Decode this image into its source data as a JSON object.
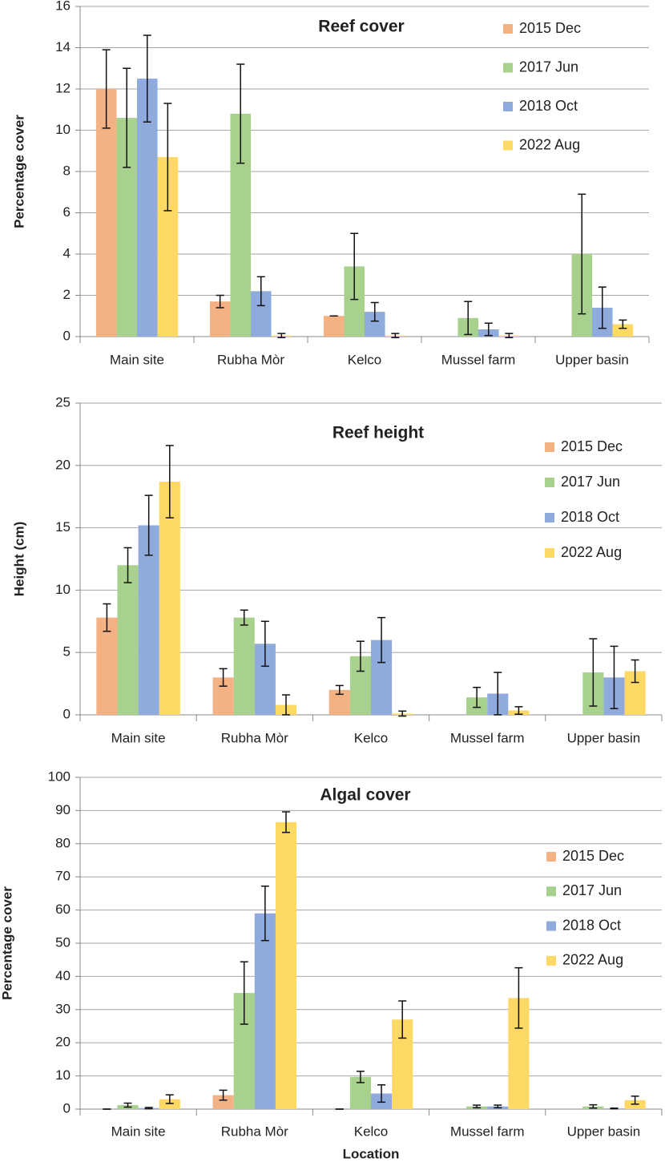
{
  "chart_data": [
    {
      "type": "bar",
      "title": "Reef cover",
      "y_label": "Percentage cover",
      "categories": [
        "Main site",
        "Rubha Mòr",
        "Kelco",
        "Mussel farm",
        "Upper basin"
      ],
      "series": [
        {
          "name": "2015 Dec",
          "color": "#f4b183",
          "values": [
            12.0,
            1.7,
            1.0,
            null,
            null
          ],
          "errors": [
            1.9,
            0.3,
            0,
            null,
            null
          ]
        },
        {
          "name": "2017 Jun",
          "color": "#a9d18e",
          "values": [
            10.6,
            10.8,
            3.4,
            0.9,
            4.0
          ],
          "errors": [
            2.4,
            2.4,
            1.6,
            0.8,
            2.9
          ]
        },
        {
          "name": "2018 Oct",
          "color": "#8faadc",
          "values": [
            12.5,
            2.2,
            1.2,
            0.35,
            1.4
          ],
          "errors": [
            2.1,
            0.7,
            0.45,
            0.3,
            1.0
          ]
        },
        {
          "name": "2022 Aug",
          "color": "#ffd966",
          "values": [
            8.7,
            0.05,
            0.05,
            0.05,
            0.6
          ],
          "errors": [
            2.6,
            0.1,
            0.1,
            0.1,
            0.2
          ]
        }
      ],
      "ylim": [
        0,
        16
      ],
      "yticks": [
        0,
        2,
        4,
        6,
        8,
        10,
        12,
        14,
        16
      ],
      "grid": true,
      "legend": "upper right"
    },
    {
      "type": "bar",
      "title": "Reef height",
      "y_label": "Height (cm)",
      "categories": [
        "Main site",
        "Rubha Mòr",
        "Kelco",
        "Mussel farm",
        "Upper basin"
      ],
      "series": [
        {
          "name": "2015 Dec",
          "color": "#f4b183",
          "values": [
            7.8,
            3.0,
            2.0,
            null,
            null
          ],
          "errors": [
            1.1,
            0.7,
            0.35,
            null,
            null
          ]
        },
        {
          "name": "2017 Jun",
          "color": "#a9d18e",
          "values": [
            12.0,
            7.8,
            4.7,
            1.4,
            3.4
          ],
          "errors": [
            1.4,
            0.6,
            1.2,
            0.8,
            2.7
          ]
        },
        {
          "name": "2018 Oct",
          "color": "#8faadc",
          "values": [
            15.2,
            5.7,
            6.0,
            1.7,
            3.0
          ],
          "errors": [
            2.4,
            1.8,
            1.8,
            1.7,
            2.5
          ]
        },
        {
          "name": "2022 Aug",
          "color": "#ffd966",
          "values": [
            18.7,
            0.8,
            0.1,
            0.35,
            3.5
          ],
          "errors": [
            2.9,
            0.8,
            0.2,
            0.3,
            0.9
          ]
        }
      ],
      "ylim": [
        0,
        25
      ],
      "yticks": [
        0,
        5,
        10,
        15,
        20,
        25
      ],
      "grid": true,
      "legend": "upper right"
    },
    {
      "type": "bar",
      "title": "Algal cover",
      "y_label": "Percentage cover",
      "x_label": "Location",
      "categories": [
        "Main site",
        "Rubha Mòr",
        "Kelco",
        "Mussel farm",
        "Upper basin"
      ],
      "series": [
        {
          "name": "2015 Dec",
          "color": "#f4b183",
          "values": [
            0,
            4.2,
            0,
            null,
            null
          ],
          "errors": [
            0,
            1.5,
            0,
            null,
            null
          ]
        },
        {
          "name": "2017 Jun",
          "color": "#a9d18e",
          "values": [
            1.2,
            35,
            9.7,
            0.8,
            0.8
          ],
          "errors": [
            0.6,
            9.4,
            1.7,
            0.4,
            0.5
          ]
        },
        {
          "name": "2018 Oct",
          "color": "#8faadc",
          "values": [
            0.3,
            59,
            4.7,
            0.8,
            0.2
          ],
          "errors": [
            0.2,
            8.2,
            2.6,
            0.4,
            0.1
          ]
        },
        {
          "name": "2022 Aug",
          "color": "#ffd966",
          "values": [
            3.0,
            86.5,
            27,
            33.5,
            2.7
          ],
          "errors": [
            1.3,
            3.1,
            5.6,
            9.1,
            1.2
          ]
        }
      ],
      "ylim": [
        0,
        100
      ],
      "yticks": [
        0,
        10,
        20,
        30,
        40,
        50,
        60,
        70,
        80,
        90,
        100
      ],
      "grid": true,
      "legend": "upper right"
    }
  ]
}
